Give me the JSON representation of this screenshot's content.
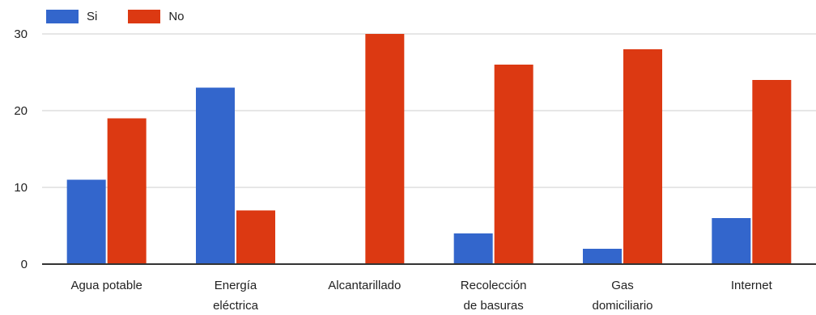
{
  "chart_data": {
    "type": "bar",
    "categories": [
      [
        "Agua potable"
      ],
      [
        "Energía",
        "eléctrica"
      ],
      [
        "Alcantarillado"
      ],
      [
        "Recolección",
        "de basuras"
      ],
      [
        "Gas",
        "domiciliario"
      ],
      [
        "Internet"
      ]
    ],
    "series": [
      {
        "name": "Si",
        "color": "#3366cc",
        "values": [
          11,
          23,
          0,
          4,
          2,
          6
        ]
      },
      {
        "name": "No",
        "color": "#dc3912",
        "values": [
          19,
          7,
          30,
          26,
          28,
          24
        ]
      }
    ],
    "title": "",
    "xlabel": "",
    "ylabel": "",
    "ylim": [
      0,
      30
    ],
    "yticks": [
      0,
      10,
      20,
      30
    ],
    "grid": true,
    "legend_position": "top-left"
  }
}
